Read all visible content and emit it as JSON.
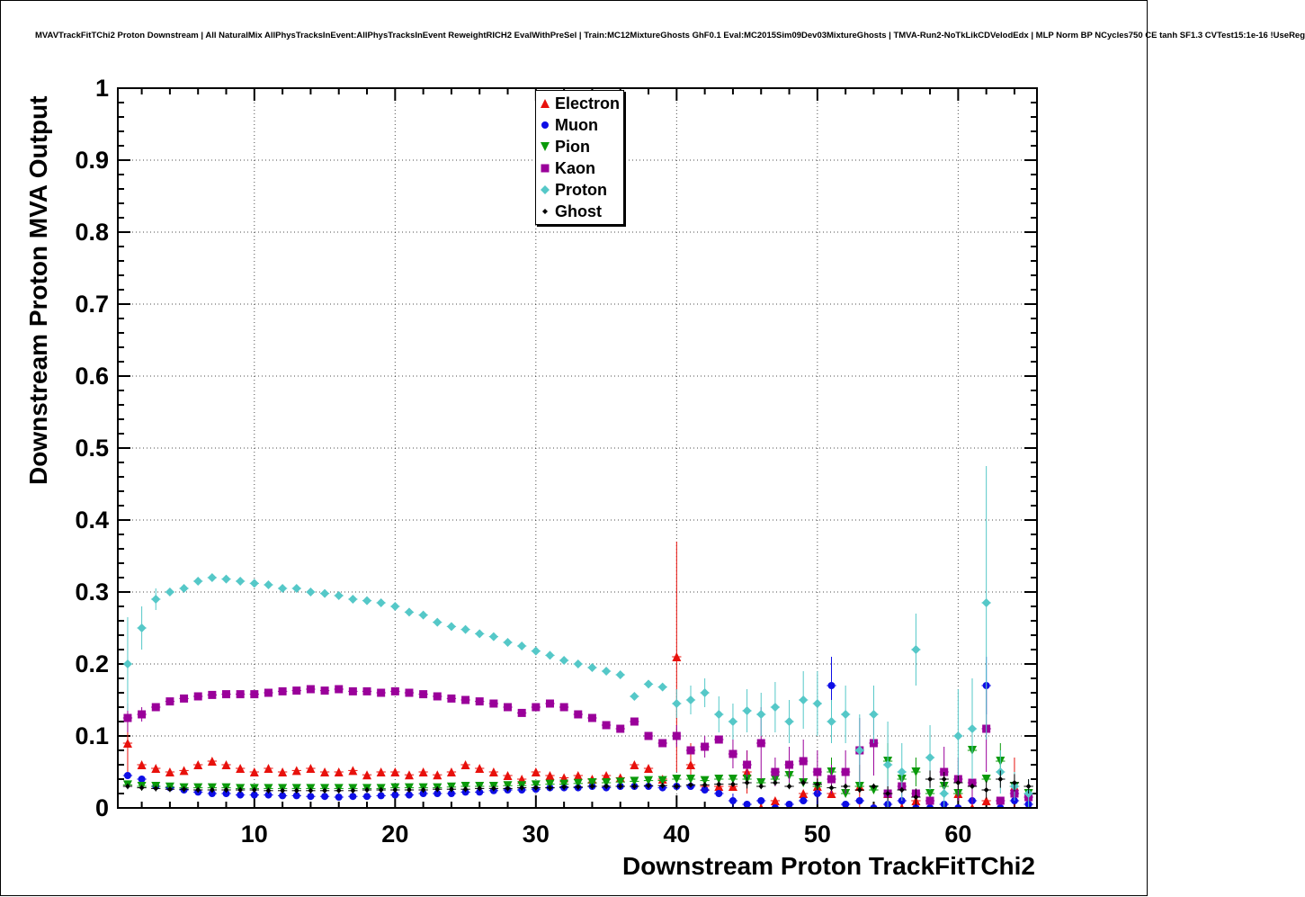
{
  "chart_data": {
    "type": "scatter",
    "title": "MVAVTrackFitTChi2 Proton Downstream | All NaturalMix AllPhysTracksInEvent:AllPhysTracksInEvent ReweightRICH2 EvalWithPreSel | Train:MC12MixtureGhosts GhF0.1 Eval:MC2015Sim09Dev03MixtureGhosts | TMVA-Run2-NoTkLikCDVelodEdx | MLP Norm BP NCycles750 CE tanh SF1.3 CVTest15:1e-16 !UseReg",
    "xlabel": "Downstream Proton TrackFitTChi2",
    "ylabel": "Downstream Proton MVA Output",
    "xlim": [
      0.3,
      65.6
    ],
    "ylim": [
      0,
      1
    ],
    "x_ticks": [
      10,
      20,
      30,
      40,
      50,
      60
    ],
    "y_ticks": [
      0,
      0.1,
      0.2,
      0.3,
      0.4,
      0.5,
      0.6,
      0.7,
      0.8,
      0.9,
      1
    ],
    "grid": "dotted",
    "legend_position": "top-center",
    "x_start": 1,
    "x_step": 1,
    "bin_half_width": 0.33,
    "default_err": 0.004,
    "series": [
      {
        "name": "Electron",
        "marker": "triangle-up",
        "color": "#e8110c",
        "size": 5,
        "y": [
          0.09,
          0.06,
          0.055,
          0.05,
          0.052,
          0.06,
          0.065,
          0.06,
          0.055,
          0.05,
          0.055,
          0.05,
          0.052,
          0.055,
          0.05,
          0.05,
          0.052,
          0.046,
          0.05,
          0.05,
          0.046,
          0.05,
          0.046,
          0.05,
          0.06,
          0.055,
          0.05,
          0.045,
          0.04,
          0.05,
          0.045,
          0.042,
          0.045,
          0.04,
          0.045,
          0.042,
          0.06,
          0.055,
          0.04,
          0.21,
          0.06,
          0.03,
          0.03,
          0.03,
          0.05,
          0.0,
          0.01,
          0.0,
          0.02,
          0.03,
          0.02,
          0.0,
          0.03,
          0.0,
          0.02,
          0.0,
          0.01,
          0.0,
          0.0,
          0.02,
          0.0,
          0.01,
          0.0,
          0.03,
          0.0
        ],
        "err": {
          "1": 0.04,
          "40": 0.16,
          "41": 0.03,
          "45": 0.03,
          "50": 0.02,
          "53": 0.03,
          "64": 0.04
        }
      },
      {
        "name": "Muon",
        "marker": "circle",
        "color": "#0e0ee6",
        "size": 4,
        "y": [
          0.045,
          0.04,
          0.03,
          0.028,
          0.025,
          0.022,
          0.02,
          0.02,
          0.018,
          0.018,
          0.018,
          0.017,
          0.017,
          0.016,
          0.016,
          0.015,
          0.016,
          0.016,
          0.017,
          0.018,
          0.018,
          0.02,
          0.02,
          0.02,
          0.022,
          0.022,
          0.024,
          0.025,
          0.025,
          0.026,
          0.028,
          0.028,
          0.028,
          0.03,
          0.028,
          0.03,
          0.03,
          0.03,
          0.028,
          0.03,
          0.03,
          0.025,
          0.02,
          0.01,
          0.005,
          0.01,
          0.0,
          0.005,
          0.01,
          0.02,
          0.17,
          0.005,
          0.01,
          0.0,
          0.005,
          0.01,
          0.0,
          0.0,
          0.005,
          0.0,
          0.01,
          0.17,
          0.0,
          0.01,
          0.005
        ],
        "err": {
          "44": 0.01,
          "50": 0.015,
          "51": 0.04,
          "62": 0.04
        }
      },
      {
        "name": "Pion",
        "marker": "triangle-down",
        "color": "#0a9a0a",
        "size": 5,
        "y": [
          0.032,
          0.03,
          0.03,
          0.029,
          0.028,
          0.028,
          0.028,
          0.028,
          0.027,
          0.027,
          0.027,
          0.027,
          0.027,
          0.027,
          0.027,
          0.027,
          0.027,
          0.027,
          0.027,
          0.028,
          0.028,
          0.028,
          0.028,
          0.029,
          0.03,
          0.03,
          0.03,
          0.031,
          0.031,
          0.032,
          0.033,
          0.033,
          0.034,
          0.035,
          0.035,
          0.036,
          0.037,
          0.038,
          0.038,
          0.04,
          0.04,
          0.038,
          0.04,
          0.04,
          0.04,
          0.035,
          0.04,
          0.045,
          0.035,
          0.03,
          0.05,
          0.02,
          0.03,
          0.025,
          0.065,
          0.04,
          0.05,
          0.02,
          0.03,
          0.02,
          0.08,
          0.04,
          0.065,
          0.03,
          0.02
        ],
        "err": {
          "45": 0.01,
          "48": 0.015,
          "51": 0.02,
          "55": 0.025,
          "57": 0.02,
          "61": 0.03,
          "63": 0.025
        }
      },
      {
        "name": "Kaon",
        "marker": "square",
        "color": "#9a009a",
        "size": 4.5,
        "y": [
          0.125,
          0.13,
          0.14,
          0.148,
          0.152,
          0.155,
          0.157,
          0.158,
          0.158,
          0.158,
          0.16,
          0.162,
          0.163,
          0.165,
          0.163,
          0.165,
          0.162,
          0.162,
          0.16,
          0.162,
          0.16,
          0.158,
          0.155,
          0.152,
          0.15,
          0.148,
          0.145,
          0.14,
          0.132,
          0.14,
          0.145,
          0.14,
          0.13,
          0.125,
          0.115,
          0.11,
          0.12,
          0.1,
          0.09,
          0.1,
          0.08,
          0.085,
          0.095,
          0.075,
          0.06,
          0.09,
          0.05,
          0.06,
          0.065,
          0.05,
          0.04,
          0.05,
          0.08,
          0.09,
          0.02,
          0.03,
          0.02,
          0.01,
          0.05,
          0.04,
          0.035,
          0.11,
          0.01,
          0.02,
          0.015
        ],
        "err": {
          "1": 0.02,
          "2": 0.01,
          "40": 0.015,
          "42": 0.015,
          "44": 0.02,
          "45": 0.02,
          "46": 0.05,
          "47": 0.02,
          "48": 0.025,
          "49": 0.03,
          "50": 0.03,
          "51": 0.02,
          "52": 0.03,
          "53": 0.045,
          "54": 0.045,
          "55": 0.02,
          "56": 0.02,
          "59": 0.035,
          "60": 0.03,
          "61": 0.03,
          "62": 0.06
        }
      },
      {
        "name": "Proton",
        "marker": "diamond",
        "color": "#55c8c8",
        "size": 5,
        "y": [
          0.2,
          0.25,
          0.29,
          0.3,
          0.305,
          0.315,
          0.32,
          0.318,
          0.315,
          0.312,
          0.31,
          0.305,
          0.305,
          0.3,
          0.298,
          0.295,
          0.29,
          0.288,
          0.285,
          0.28,
          0.272,
          0.268,
          0.258,
          0.252,
          0.248,
          0.242,
          0.238,
          0.23,
          0.225,
          0.218,
          0.212,
          0.205,
          0.2,
          0.195,
          0.19,
          0.185,
          0.155,
          0.172,
          0.168,
          0.145,
          0.15,
          0.16,
          0.13,
          0.12,
          0.135,
          0.13,
          0.14,
          0.12,
          0.15,
          0.145,
          0.12,
          0.13,
          0.08,
          0.13,
          0.06,
          0.05,
          0.22,
          0.07,
          0.02,
          0.1,
          0.11,
          0.285,
          0.05,
          0.03,
          0.02
        ],
        "err": {
          "1": 0.065,
          "2": 0.03,
          "3": 0.015,
          "40": 0.02,
          "41": 0.02,
          "42": 0.02,
          "43": 0.025,
          "44": 0.025,
          "45": 0.03,
          "46": 0.03,
          "47": 0.035,
          "48": 0.03,
          "49": 0.04,
          "50": 0.045,
          "51": 0.03,
          "52": 0.04,
          "53": 0.05,
          "54": 0.04,
          "55": 0.06,
          "56": 0.04,
          "57": 0.05,
          "58": 0.045,
          "59": 0.02,
          "60": 0.065,
          "61": 0.07,
          "62": 0.19,
          "63": 0.03,
          "64": 0.02,
          "65": 0.02
        }
      },
      {
        "name": "Ghost",
        "marker": "diamond",
        "color": "#000000",
        "size": 3,
        "y": [
          0.03,
          0.028,
          0.027,
          0.026,
          0.026,
          0.025,
          0.025,
          0.025,
          0.025,
          0.025,
          0.024,
          0.024,
          0.024,
          0.024,
          0.024,
          0.024,
          0.024,
          0.025,
          0.025,
          0.025,
          0.025,
          0.025,
          0.026,
          0.026,
          0.026,
          0.027,
          0.027,
          0.027,
          0.028,
          0.028,
          0.028,
          0.029,
          0.029,
          0.03,
          0.03,
          0.03,
          0.03,
          0.031,
          0.031,
          0.03,
          0.032,
          0.032,
          0.033,
          0.033,
          0.035,
          0.03,
          0.035,
          0.03,
          0.035,
          0.033,
          0.028,
          0.03,
          0.025,
          0.03,
          0.02,
          0.025,
          0.015,
          0.04,
          0.04,
          0.035,
          0.03,
          0.025,
          0.04,
          0.035,
          0.03
        ],
        "err": {
          "45": 0.008,
          "50": 0.008,
          "55": 0.01,
          "57": 0.012,
          "58": 0.012,
          "59": 0.01,
          "60": 0.01,
          "62": 0.012,
          "63": 0.012,
          "64": 0.012,
          "65": 0.01
        }
      }
    ]
  }
}
